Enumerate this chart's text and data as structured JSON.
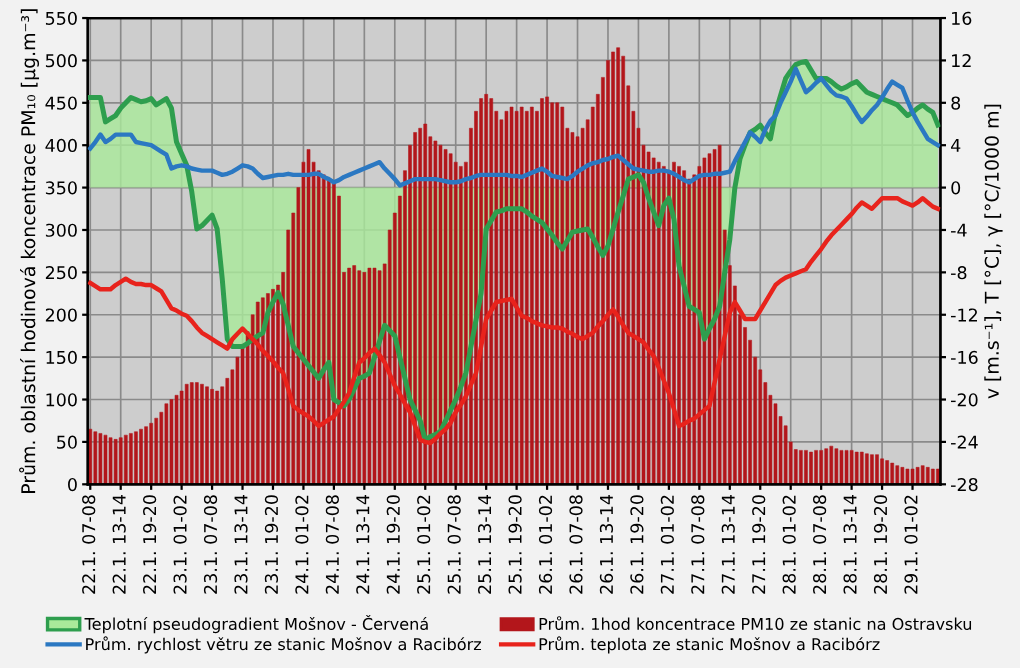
{
  "chart_data": {
    "type": "bar",
    "ylabel": "Prům. oblastní hodinová koncentrace PM₁₀ [µg.m⁻³]",
    "y2label": "v [m.s⁻¹], T [°C], γ [°C/1000 m]",
    "categories": [
      "22.1. 07-08",
      null,
      null,
      null,
      null,
      null,
      "22.1. 13-14",
      null,
      null,
      null,
      null,
      null,
      "22.1. 19-20",
      null,
      null,
      null,
      null,
      null,
      "23.1. 01-02",
      null,
      null,
      null,
      null,
      null,
      "23.1. 07-08",
      null,
      null,
      null,
      null,
      null,
      "23.1. 13-14",
      null,
      null,
      null,
      null,
      null,
      "23.1. 19-20",
      null,
      null,
      null,
      null,
      null,
      "24.1. 01-02",
      null,
      null,
      null,
      null,
      null,
      "24.1. 07-08",
      null,
      null,
      null,
      null,
      null,
      "24.1. 13-14",
      null,
      null,
      null,
      null,
      null,
      "24.1. 19-20",
      null,
      null,
      null,
      null,
      null,
      "25.1. 01-02",
      null,
      null,
      null,
      null,
      null,
      "25.1. 07-08",
      null,
      null,
      null,
      null,
      null,
      "25.1. 13-14",
      null,
      null,
      null,
      null,
      null,
      "25.1. 19-20",
      null,
      null,
      null,
      null,
      null,
      "26.1. 01-02",
      null,
      null,
      null,
      null,
      null,
      "26.1. 07-08",
      null,
      null,
      null,
      null,
      null,
      "26.1. 13-14",
      null,
      null,
      null,
      null,
      null,
      "26.1. 19-20",
      null,
      null,
      null,
      null,
      null,
      "27.1. 01-02",
      null,
      null,
      null,
      null,
      null,
      "27.1. 07-08",
      null,
      null,
      null,
      null,
      null,
      "27.1. 13-14",
      null,
      null,
      null,
      null,
      null,
      "27.1. 19-20",
      null,
      null,
      null,
      null,
      null,
      "28.1. 01-02",
      null,
      null,
      null,
      null,
      null,
      "28.1. 07-08",
      null,
      null,
      null,
      null,
      null,
      "28.1. 13-14",
      null,
      null,
      null,
      null,
      null,
      "28.1. 19-20",
      null,
      null,
      null,
      null,
      null,
      "29.1. 01-02",
      null,
      null,
      null,
      null,
      null
    ],
    "ylim": [
      0,
      550
    ],
    "yticks": [
      0,
      50,
      100,
      150,
      200,
      250,
      300,
      350,
      400,
      450,
      500,
      550
    ],
    "y2lim": [
      -28,
      16
    ],
    "y2ticks": [
      -28,
      -24,
      -20,
      -16,
      -12,
      -8,
      -4,
      0,
      4,
      8,
      12,
      16
    ],
    "grid": true,
    "legend": "bottom",
    "series": [
      {
        "name": "Teplotní pseudogradient Mošnov - Červená",
        "type": "area",
        "axis": "y2",
        "color": "#2e9e4e",
        "values": [
          8.5,
          8.5,
          8.5,
          6.2,
          6.5,
          6.8,
          7.5,
          8,
          8.5,
          8.3,
          8.1,
          8.2,
          8.4,
          7.8,
          8.1,
          8.4,
          7.5,
          4.3,
          3.2,
          2.1,
          -0.4,
          -3.9,
          -3.6,
          -3.1,
          -2.6,
          -3.9,
          -8.6,
          -14.3,
          -15,
          -15,
          -15,
          -14.7,
          -14.3,
          -14,
          -13.7,
          -11.8,
          -10.8,
          -9.9,
          -11,
          -13,
          -15,
          -15.6,
          -16.2,
          -16.8,
          -17.4,
          -18,
          -17.2,
          -16.5,
          -20,
          -20.3,
          -20.6,
          -20,
          -19,
          -18,
          -17.8,
          -17.5,
          -16,
          -14.5,
          -13,
          -13.5,
          -14,
          -16,
          -18,
          -20,
          -21,
          -22,
          -23.8,
          -23.5,
          -23.3,
          -23,
          -22,
          -21,
          -20,
          -18.8,
          -17.5,
          -15,
          -12.5,
          -10,
          -3.9,
          -3.1,
          -2.3,
          -2.2,
          -2,
          -2,
          -2,
          -2,
          -2.3,
          -2.7,
          -3,
          -3.3,
          -3.9,
          -4.5,
          -5.2,
          -5.8,
          -5,
          -4.2,
          -4.1,
          -4,
          -3.9,
          -4.7,
          -5.6,
          -6.4,
          -5.5,
          -3.9,
          -2.3,
          -0.8,
          0.8,
          1,
          1.2,
          0.5,
          -1,
          -2.3,
          -3.6,
          -1.7,
          -1,
          -3,
          -7.4,
          -9.3,
          -11.2,
          -11.5,
          -11.8,
          -14.3,
          -13.3,
          -12.4,
          -11.2,
          -8,
          -4.9,
          0,
          2.7,
          4,
          5.2,
          5.5,
          5.9,
          5.2,
          4.6,
          7.1,
          8.7,
          10.3,
          11,
          11.6,
          11.8,
          11.9,
          11.1,
          10.3,
          10.3,
          10.3,
          10,
          9.6,
          9.3,
          9.5,
          9.8,
          10,
          9.5,
          9,
          8.8,
          8.6,
          8.4,
          8.2,
          8,
          7.8,
          7.3,
          6.8,
          7.1,
          7.5,
          7.8,
          7.4,
          7.1,
          5.9
        ]
      },
      {
        "name": "Prům. 1hod koncentrace PM10 ze stanic na Ostravsku",
        "color": "#b3161b",
        "values": [
          65,
          62,
          60,
          58,
          55,
          53,
          55,
          58,
          60,
          62,
          65,
          68,
          72,
          78,
          85,
          95,
          100,
          105,
          110,
          118,
          120,
          120,
          118,
          115,
          112,
          110,
          115,
          125,
          135,
          150,
          165,
          180,
          200,
          215,
          220,
          225,
          230,
          235,
          250,
          300,
          320,
          350,
          380,
          395,
          380,
          370,
          365,
          360,
          355,
          340,
          250,
          255,
          258,
          252,
          250,
          255,
          255,
          252,
          260,
          300,
          320,
          340,
          370,
          400,
          415,
          420,
          425,
          410,
          405,
          400,
          395,
          390,
          380,
          375,
          380,
          420,
          440,
          455,
          460,
          455,
          440,
          430,
          440,
          445,
          440,
          445,
          440,
          445,
          440,
          455,
          457,
          450,
          450,
          445,
          420,
          415,
          410,
          420,
          430,
          445,
          460,
          480,
          500,
          510,
          515,
          505,
          470,
          440,
          420,
          400,
          392,
          385,
          380,
          375,
          370,
          380,
          375,
          370,
          360,
          365,
          375,
          385,
          390,
          395,
          400,
          300,
          258,
          234,
          200,
          185,
          170,
          150,
          135,
          120,
          105,
          95,
          80,
          69,
          50,
          41,
          40,
          40,
          38,
          40,
          40,
          42,
          45,
          42,
          40,
          40,
          40,
          38,
          38,
          36,
          35,
          35,
          30,
          28,
          25,
          22,
          20,
          18,
          18,
          20,
          22,
          20,
          18,
          18
        ]
      },
      {
        "name": "Prům. rychlost větru ze stanic Mošnov a Racibórz",
        "type": "line",
        "axis": "y2",
        "color": "#2b78c2",
        "values": [
          3.7,
          4.3,
          5,
          4.3,
          4.6,
          5,
          5,
          5,
          5,
          4.3,
          4.2,
          4.1,
          4,
          3.7,
          3.4,
          3.1,
          1.8,
          2,
          2.1,
          2,
          1.8,
          1.7,
          1.6,
          1.6,
          1.6,
          1.4,
          1.2,
          1.3,
          1.5,
          1.8,
          2.1,
          2,
          1.8,
          1.3,
          0.9,
          1,
          1.1,
          1.2,
          1.2,
          1.3,
          1.2,
          1.2,
          1.2,
          1.2,
          1.3,
          1.3,
          1,
          0.8,
          0.5,
          0.7,
          1,
          1.2,
          1.4,
          1.6,
          1.8,
          2,
          2.2,
          2.4,
          1.8,
          1.3,
          0.8,
          0.2,
          0.4,
          0.6,
          0.8,
          0.8,
          0.8,
          0.8,
          0.8,
          0.7,
          0.6,
          0.5,
          0.5,
          0.6,
          0.8,
          0.9,
          1.1,
          1.2,
          1.2,
          1.2,
          1.2,
          1.2,
          1.2,
          1.1,
          1.1,
          1,
          1.2,
          1.4,
          1.6,
          1.8,
          1.5,
          1.1,
          1,
          0.9,
          0.8,
          1.1,
          1.5,
          1.8,
          2.1,
          2.3,
          2.4,
          2.6,
          2.7,
          2.9,
          3,
          2.6,
          2.2,
          1.8,
          1.7,
          1.6,
          1.5,
          1.5,
          1.6,
          1.6,
          1.5,
          1.3,
          1,
          0.7,
          0.5,
          0.8,
          1.1,
          1.2,
          1.2,
          1.3,
          1.3,
          1.4,
          1.5,
          2.5,
          3.4,
          4.3,
          5.2,
          4.8,
          4.3,
          5.5,
          6.3,
          6.8,
          8,
          9,
          10,
          11.2,
          10.1,
          9,
          9.4,
          9.9,
          10.3,
          9.7,
          9.1,
          8.7,
          8.6,
          8.4,
          7.7,
          6.9,
          6.2,
          6.7,
          7.3,
          7.8,
          8.5,
          9.3,
          10,
          9.7,
          9.4,
          8.2,
          7.1,
          6.2,
          5.4,
          4.6,
          4.3,
          4
        ]
      },
      {
        "name": "Prům. teplota ze stanic Mošnov a Racibórz",
        "type": "line",
        "axis": "y2",
        "color": "#e8231c",
        "values": [
          -9,
          -9.3,
          -9.6,
          -9.6,
          -9.6,
          -9.2,
          -8.9,
          -8.6,
          -8.9,
          -9.1,
          -9.1,
          -9.2,
          -9.2,
          -9.5,
          -9.8,
          -10.6,
          -11.4,
          -11.6,
          -11.9,
          -12.1,
          -12.6,
          -13.2,
          -13.7,
          -14,
          -14.3,
          -14.6,
          -14.9,
          -15.2,
          -14.3,
          -13.8,
          -13.3,
          -13.8,
          -14.3,
          -14.8,
          -15.4,
          -15.9,
          -16.4,
          -17,
          -17.5,
          -19,
          -20.6,
          -21,
          -21.3,
          -21.6,
          -22,
          -22.5,
          -22.2,
          -21.9,
          -21.6,
          -20.9,
          -20.2,
          -19.4,
          -17.9,
          -16.5,
          -16.1,
          -15.6,
          -15.2,
          -15.8,
          -16.5,
          -17.6,
          -18.7,
          -19.5,
          -20.4,
          -21.2,
          -22.5,
          -23.8,
          -24,
          -24.1,
          -23.7,
          -23.2,
          -22.8,
          -22.2,
          -21.2,
          -20.5,
          -19.7,
          -18.6,
          -17.5,
          -15,
          -12.4,
          -11.6,
          -10.8,
          -10.7,
          -10.6,
          -10.5,
          -11.3,
          -12.1,
          -12.3,
          -12.6,
          -12.8,
          -13,
          -13.1,
          -13.2,
          -13.2,
          -13.3,
          -13.6,
          -13.8,
          -14.1,
          -14.3,
          -14,
          -13.7,
          -13.1,
          -12.6,
          -12,
          -11.5,
          -12.2,
          -13,
          -13.7,
          -14,
          -14.3,
          -14.6,
          -15.3,
          -15.9,
          -17,
          -18.2,
          -19.4,
          -20.9,
          -22.5,
          -22.3,
          -22,
          -21.8,
          -21.4,
          -21,
          -20.6,
          -18.4,
          -16.2,
          -14,
          -11.8,
          -10.8,
          -11.6,
          -12.4,
          -12.4,
          -12.4,
          -11.6,
          -10.8,
          -10,
          -9.2,
          -8.8,
          -8.5,
          -8.3,
          -8.1,
          -7.9,
          -7.7,
          -7,
          -6.4,
          -5.8,
          -5.1,
          -4.5,
          -4,
          -3.5,
          -3,
          -2.5,
          -1.9,
          -1.4,
          -1.7,
          -2,
          -1.5,
          -1,
          -1,
          -1,
          -1,
          -1.3,
          -1.5,
          -1.7,
          -1.4,
          -1,
          -1.4,
          -1.8,
          -2
        ]
      }
    ]
  }
}
